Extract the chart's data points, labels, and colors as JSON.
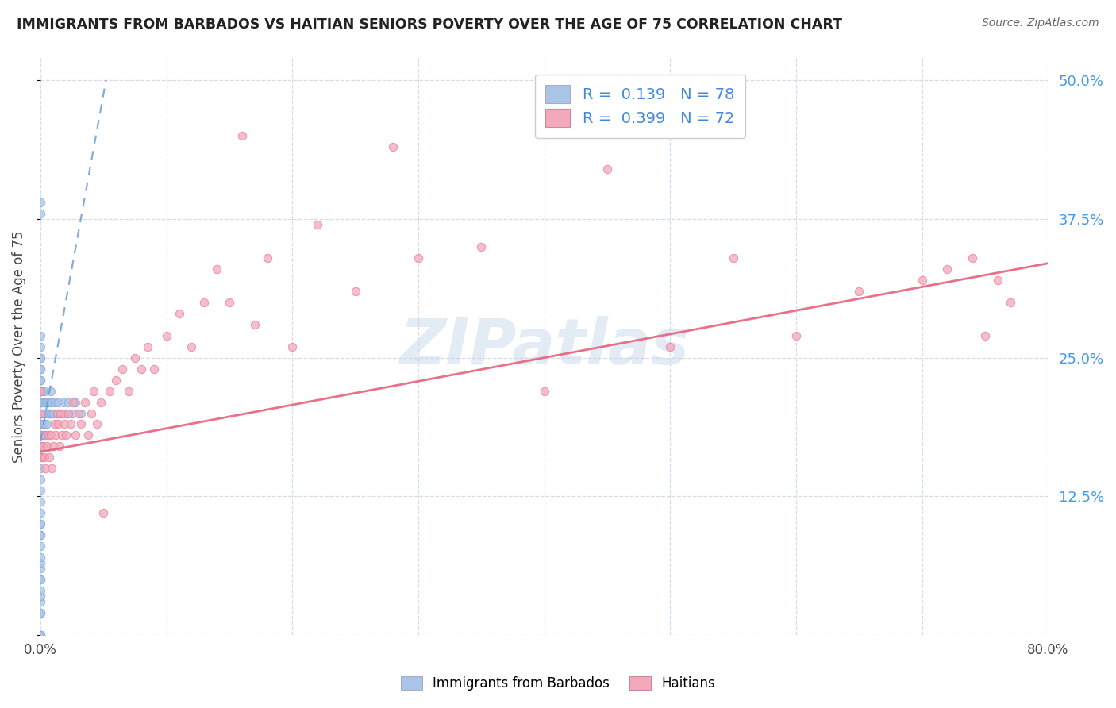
{
  "title": "IMMIGRANTS FROM BARBADOS VS HAITIAN SENIORS POVERTY OVER THE AGE OF 75 CORRELATION CHART",
  "source": "Source: ZipAtlas.com",
  "ylabel": "Seniors Poverty Over the Age of 75",
  "ytick_values": [
    0,
    0.125,
    0.25,
    0.375,
    0.5
  ],
  "ytick_labels_right": [
    "",
    "12.5%",
    "25.0%",
    "37.5%",
    "50.0%"
  ],
  "xtick_values": [
    0.0,
    0.1,
    0.2,
    0.3,
    0.4,
    0.5,
    0.6,
    0.7,
    0.8
  ],
  "xlim": [
    0,
    0.8
  ],
  "ylim": [
    0,
    0.52
  ],
  "watermark": "ZIPatlas",
  "legend_line1": "R =  0.139   N = 78",
  "legend_line2": "R =  0.399   N = 72",
  "barbados_color": "#aac4e8",
  "barbados_edge_color": "#88aadd",
  "haiti_color": "#f4a8bc",
  "haiti_edge_color": "#e88099",
  "barbados_trend_color": "#6699cc",
  "haiti_trend_color": "#e8607a",
  "background_color": "#ffffff",
  "grid_color": "#d4dce8",
  "blue_text_color": "#4488dd",
  "right_tick_color": "#4499ee",
  "scatter_size": 55,
  "scatter_alpha": 0.75,
  "barbados_scatter_x": [
    0.0,
    0.0,
    0.0,
    0.0,
    0.0,
    0.0,
    0.0,
    0.0,
    0.0,
    0.0,
    0.0,
    0.0,
    0.0,
    0.0,
    0.0,
    0.0,
    0.0,
    0.0,
    0.0,
    0.0,
    0.0,
    0.0,
    0.0,
    0.0,
    0.0,
    0.0,
    0.0,
    0.0,
    0.0,
    0.0,
    0.0,
    0.0,
    0.0,
    0.0,
    0.0,
    0.0,
    0.0,
    0.0,
    0.0,
    0.0,
    0.0,
    0.0,
    0.0,
    0.0,
    0.0,
    0.0,
    0.001,
    0.001,
    0.001,
    0.002,
    0.002,
    0.003,
    0.003,
    0.003,
    0.003,
    0.004,
    0.004,
    0.004,
    0.005,
    0.005,
    0.006,
    0.007,
    0.007,
    0.008,
    0.008,
    0.009,
    0.009,
    0.01,
    0.011,
    0.013,
    0.014,
    0.016,
    0.018,
    0.02,
    0.022,
    0.025,
    0.028,
    0.032
  ],
  "barbados_scatter_y": [
    0.0,
    0.0,
    0.0,
    0.0,
    0.02,
    0.02,
    0.03,
    0.035,
    0.04,
    0.05,
    0.05,
    0.06,
    0.065,
    0.07,
    0.08,
    0.09,
    0.09,
    0.1,
    0.1,
    0.11,
    0.12,
    0.13,
    0.14,
    0.15,
    0.16,
    0.17,
    0.18,
    0.19,
    0.19,
    0.2,
    0.2,
    0.21,
    0.21,
    0.21,
    0.22,
    0.22,
    0.23,
    0.23,
    0.24,
    0.24,
    0.25,
    0.25,
    0.26,
    0.27,
    0.38,
    0.39,
    0.18,
    0.2,
    0.22,
    0.19,
    0.21,
    0.18,
    0.19,
    0.2,
    0.22,
    0.18,
    0.2,
    0.21,
    0.19,
    0.21,
    0.2,
    0.2,
    0.21,
    0.2,
    0.22,
    0.2,
    0.21,
    0.2,
    0.21,
    0.2,
    0.21,
    0.2,
    0.21,
    0.2,
    0.21,
    0.2,
    0.21,
    0.2
  ],
  "haiti_scatter_x": [
    0.0,
    0.0,
    0.0,
    0.0,
    0.001,
    0.002,
    0.003,
    0.004,
    0.005,
    0.006,
    0.007,
    0.008,
    0.009,
    0.01,
    0.011,
    0.012,
    0.013,
    0.014,
    0.015,
    0.016,
    0.017,
    0.018,
    0.019,
    0.02,
    0.022,
    0.024,
    0.026,
    0.028,
    0.03,
    0.032,
    0.035,
    0.038,
    0.04,
    0.042,
    0.045,
    0.048,
    0.05,
    0.055,
    0.06,
    0.065,
    0.07,
    0.075,
    0.08,
    0.085,
    0.09,
    0.1,
    0.11,
    0.12,
    0.13,
    0.14,
    0.15,
    0.16,
    0.17,
    0.18,
    0.2,
    0.22,
    0.25,
    0.28,
    0.3,
    0.35,
    0.4,
    0.45,
    0.5,
    0.55,
    0.6,
    0.65,
    0.7,
    0.72,
    0.74,
    0.75,
    0.76,
    0.77
  ],
  "haiti_scatter_y": [
    0.17,
    0.2,
    0.18,
    0.22,
    0.16,
    0.17,
    0.16,
    0.15,
    0.17,
    0.18,
    0.16,
    0.18,
    0.15,
    0.17,
    0.19,
    0.18,
    0.2,
    0.19,
    0.17,
    0.2,
    0.18,
    0.2,
    0.19,
    0.18,
    0.2,
    0.19,
    0.21,
    0.18,
    0.2,
    0.19,
    0.21,
    0.18,
    0.2,
    0.22,
    0.19,
    0.21,
    0.11,
    0.22,
    0.23,
    0.24,
    0.22,
    0.25,
    0.24,
    0.26,
    0.24,
    0.27,
    0.29,
    0.26,
    0.3,
    0.33,
    0.3,
    0.45,
    0.28,
    0.34,
    0.26,
    0.37,
    0.31,
    0.44,
    0.34,
    0.35,
    0.22,
    0.42,
    0.26,
    0.34,
    0.27,
    0.31,
    0.32,
    0.33,
    0.34,
    0.27,
    0.32,
    0.3
  ],
  "barbados_trend_x": [
    0.0,
    0.052
  ],
  "barbados_trend_y": [
    0.175,
    0.5
  ],
  "haiti_trend_x": [
    0.0,
    0.8
  ],
  "haiti_trend_y": [
    0.165,
    0.335
  ]
}
